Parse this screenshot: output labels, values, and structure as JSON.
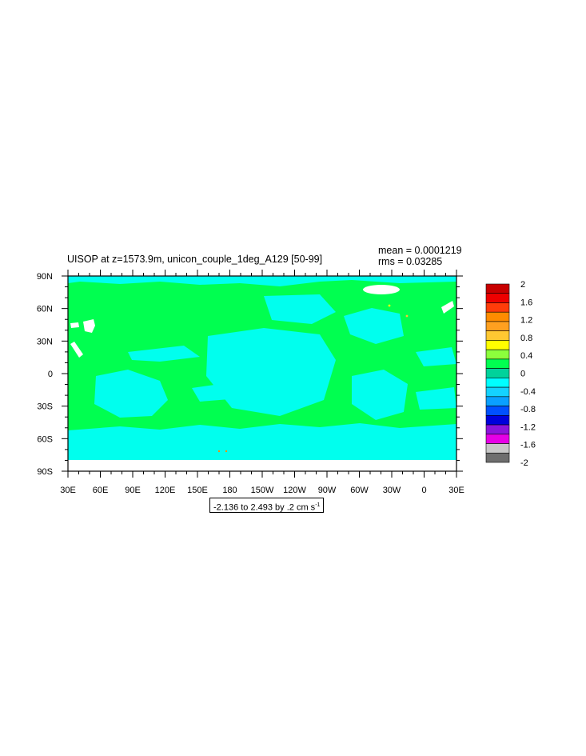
{
  "chart_data": {
    "type": "heatmap",
    "title": "UISOP at z=1573.9m, unicon_couple_1deg_A129 [50-99]",
    "stats": {
      "mean": "mean = 0.0001219",
      "rms": "rms = 0.03285"
    },
    "range_label": "-2.136 to 2.493 by .2 cm s",
    "range_unit_exponent": "-1",
    "y_ticks": [
      "90N",
      "60N",
      "30N",
      "0",
      "30S",
      "60S",
      "90S"
    ],
    "x_ticks": [
      "30E",
      "60E",
      "90E",
      "120E",
      "150E",
      "180",
      "150W",
      "120W",
      "90W",
      "60W",
      "30W",
      "0",
      "30E"
    ],
    "xlim": [
      30,
      390
    ],
    "ylim": [
      -90,
      90
    ],
    "colorbar": {
      "labels": [
        "2",
        "1.6",
        "1.2",
        "0.8",
        "0.4",
        "0",
        "-0.4",
        "-0.8",
        "-1.2",
        "-1.6",
        "-2"
      ],
      "colors": [
        "#c80000",
        "#ee0000",
        "#ff3c0a",
        "#ff8c00",
        "#ffa020",
        "#ffc832",
        "#ffff00",
        "#8cff3c",
        "#00ff50",
        "#00d29b",
        "#00ffff",
        "#14d2ff",
        "#0aa0ff",
        "#0050ff",
        "#0000dc",
        "#8c14dc",
        "#e600e6",
        "#c8c8c8",
        "#6e6e6e"
      ]
    },
    "field": {
      "dominant_color": "#00ff50",
      "secondary_color": "#00ffee",
      "missing_color": "#ffffff"
    }
  }
}
